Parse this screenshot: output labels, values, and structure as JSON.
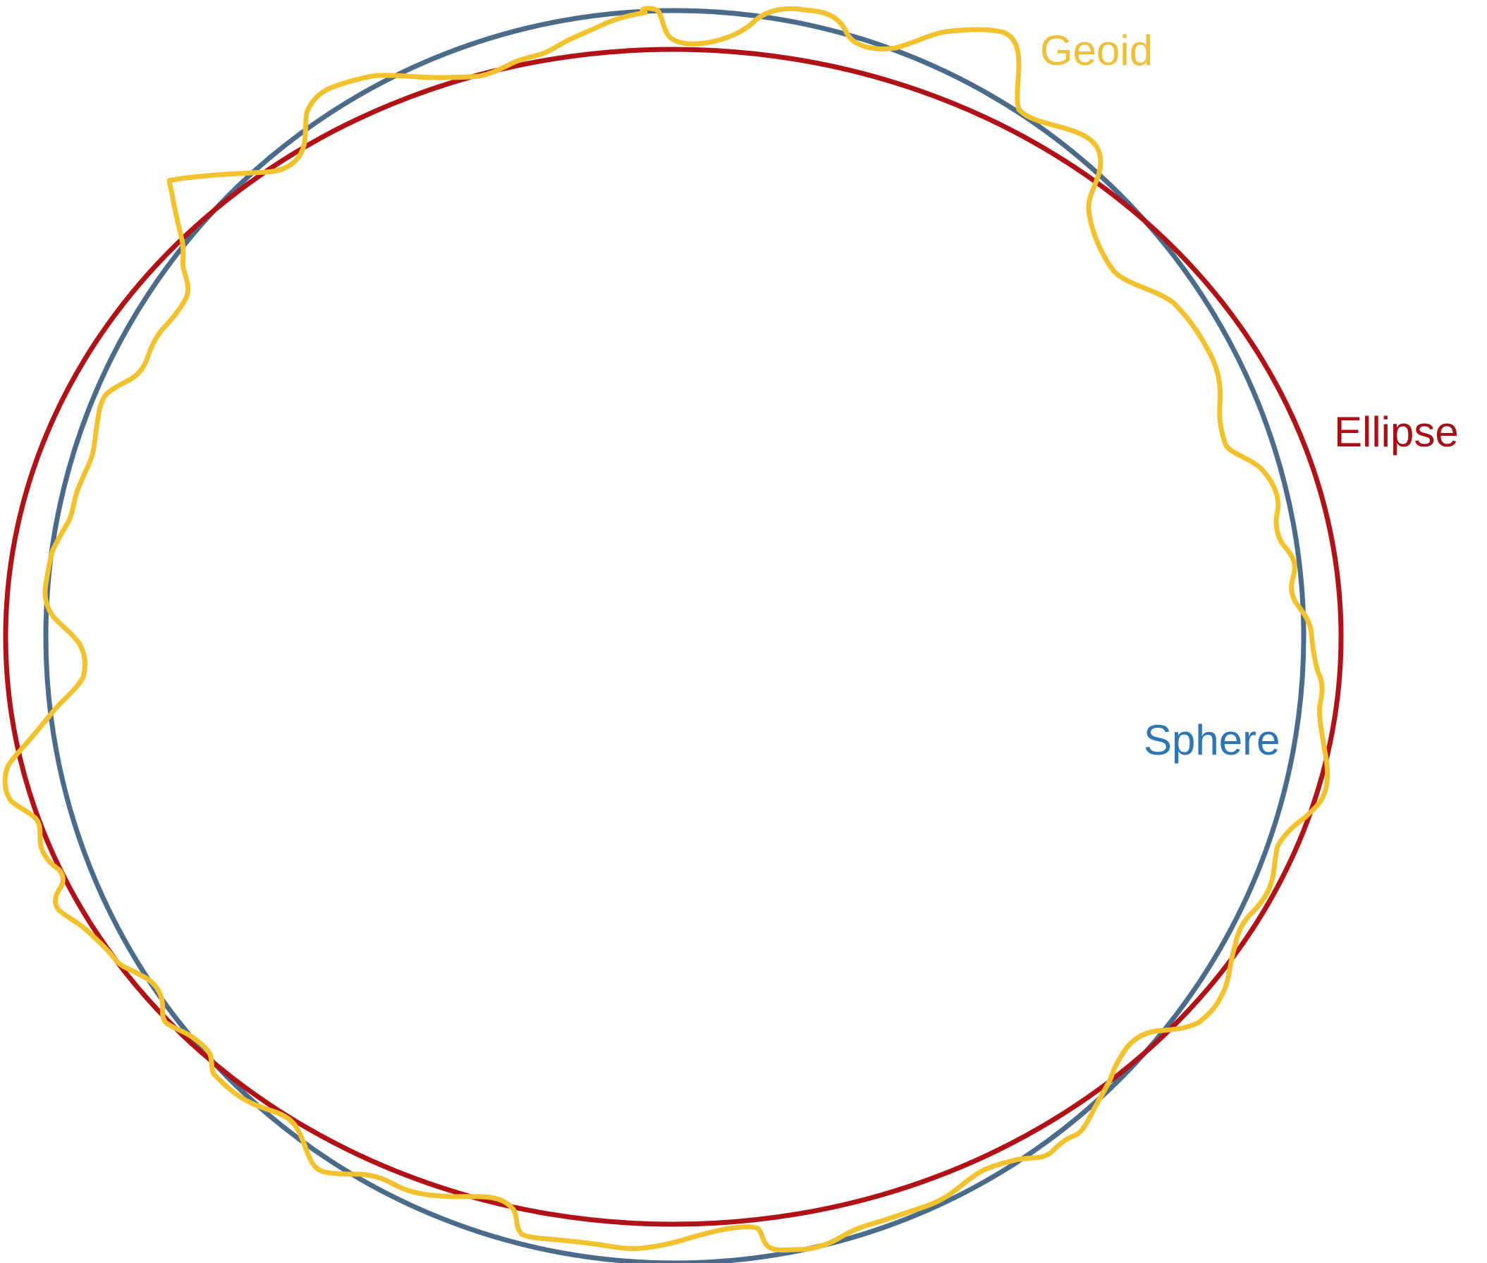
{
  "labels": {
    "geoid": "Geoid",
    "ellipse": "Ellipse",
    "sphere": "Sphere"
  },
  "colors": {
    "background": "#ffffff",
    "sphere": "#4a6b8a",
    "ellipse": "#b01217",
    "geoid": "#f2c12e",
    "sphere_label": "#2e75b6",
    "ellipse_label": "#a50f15",
    "geoid_label": "#ecc03a"
  }
}
